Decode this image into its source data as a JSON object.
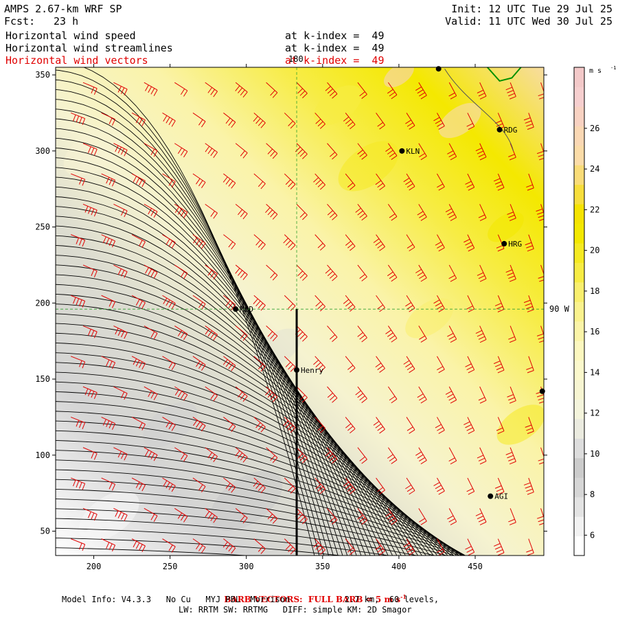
{
  "header": {
    "title": "AMPS 2.67-km WRF SP",
    "fcst_label": "Fcst:",
    "fcst_value": "23 h",
    "init": "Init: 12 UTC Tue 29 Jul 25",
    "valid": "Valid: 11 UTC Wed 30 Jul 25",
    "fields": [
      {
        "name": "Horizontal wind speed",
        "level": "at k-index =  49"
      },
      {
        "name": "Horizontal wind streamlines",
        "level": "at k-index =  49"
      },
      {
        "name": "Horizontal wind vectors",
        "level": "at k-index =  49"
      }
    ]
  },
  "chart_data": {
    "type": "heatmap",
    "description_fields": [
      "wind speed shading",
      "streamlines",
      "wind barbs"
    ],
    "x_range": [
      175,
      495
    ],
    "y_range": [
      34,
      355
    ],
    "x_ticks": [
      200,
      250,
      300,
      350,
      400,
      450
    ],
    "y_ticks": [
      50,
      100,
      150,
      200,
      250,
      300,
      350
    ],
    "colorbar": {
      "unit": "m s",
      "unit_exp": "-1",
      "levels": [
        5,
        6,
        7,
        8,
        9,
        10,
        11,
        12,
        13,
        14,
        15,
        16,
        17,
        18,
        19,
        20,
        21,
        22,
        23,
        24,
        25,
        26,
        27,
        28,
        29
      ],
      "labels": [
        6,
        8,
        10,
        12,
        14,
        16,
        18,
        20,
        22,
        24,
        26
      ],
      "colors": [
        "#ffffff",
        "#f2f2f2",
        "#e3e3e3",
        "#d6d6d6",
        "#cccccc",
        "#dddddd",
        "#ebebe0",
        "#f4f4dc",
        "#f7f5d2",
        "#fbf8cc",
        "#fcf7bf",
        "#fbf4a8",
        "#faf28e",
        "#f9ef6e",
        "#f7ec44",
        "#f5ea22",
        "#f3e800",
        "#f5e300",
        "#f7de3c",
        "#f9dc78",
        "#fbdca8",
        "#fad8b4",
        "#f8d2c2",
        "#f6cfcf",
        "#f3c9c9"
      ]
    },
    "stations": [
      {
        "name": "MCD",
        "x": 293,
        "y": 196
      },
      {
        "name": "Henry",
        "x": 333,
        "y": 156
      },
      {
        "name": "KLN",
        "x": 402,
        "y": 300
      },
      {
        "name": "RDG",
        "x": 466,
        "y": 314
      },
      {
        "name": "HRG",
        "x": 469,
        "y": 239
      },
      {
        "name": "AGI",
        "x": 460,
        "y": 73
      },
      {
        "name": "",
        "x": 426,
        "y": 354
      },
      {
        "name": "",
        "x": 494,
        "y": 142
      }
    ],
    "ref_lines": {
      "lon_label": "180",
      "lat_label": "90 W",
      "x_ref": 333,
      "y_ref": 196
    },
    "cross_section_x": 333
  },
  "footer": {
    "barb_note": "BARB VECTORS:  FULL BARB = 5 m s",
    "barb_exp": "-1",
    "model_info": "Model Info: V4.3.3   No Cu   MYJ PBL  Morrison           2.7 km,  60 levels,",
    "physics": "LW: RRTM SW: RRTMG   DIFF: simple KM: 2D Smagor"
  },
  "colors": {
    "barb": "#e00000",
    "streamline": "#000000",
    "coast": "#009000",
    "guide": "#30a030"
  }
}
